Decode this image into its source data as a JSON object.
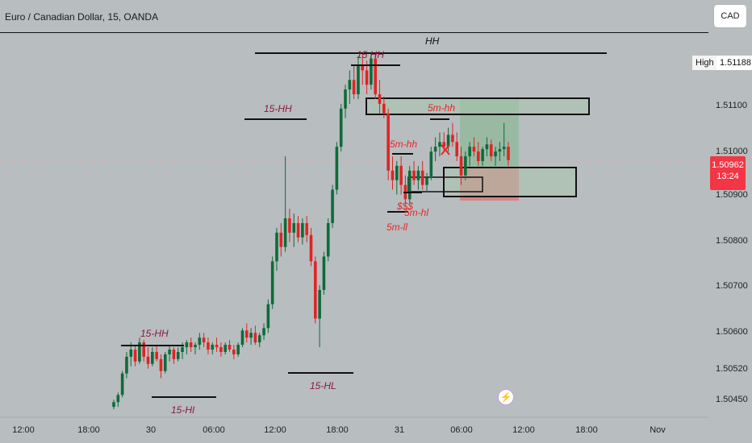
{
  "header": {
    "title": "Euro / Canadian Dollar, 15, OANDA",
    "currency_button": "CAD"
  },
  "price_scale": {
    "high_label": "High",
    "high_value": "1.51188",
    "current_price": "1.50962",
    "countdown": "13:24",
    "ticks": [
      "1.51100",
      "1.51000",
      "1.50900",
      "1.50800",
      "1.50700",
      "1.50600",
      "1.50520",
      "1.50450"
    ]
  },
  "time_axis": {
    "labels": [
      "12:00",
      "18:00",
      "30",
      "06:00",
      "12:00",
      "18:00",
      "31",
      "06:00",
      "12:00",
      "18:00",
      "Nov"
    ]
  },
  "colors": {
    "background": "#b8bdbf",
    "bull": "#0e6b3a",
    "bear": "#e02424",
    "annotation": "#8b1a3c",
    "annotation_red": "#e8262a",
    "current_price": "#f23645"
  },
  "annotations": {
    "hh": "HH",
    "hh15_top": "15 HH",
    "hh15_mid": "15-HH",
    "hh15_low": "15-HH",
    "hl15_low": "15-HI",
    "hl15_mid": "15-HL",
    "hh5_box": "5m-hh",
    "hh5_mid": "5m-hh",
    "ll5": "5m-ll",
    "hl5": "5m-hl",
    "sss": "$$$"
  },
  "chart_data": {
    "type": "candlestick",
    "title": "Euro / Canadian Dollar, 15, OANDA",
    "xlabel": "",
    "ylabel": "",
    "ylim": [
      1.5043,
      1.5123
    ],
    "x_ticks": [
      "12:00",
      "18:00",
      "30",
      "06:00",
      "12:00",
      "18:00",
      "31",
      "06:00",
      "12:00",
      "18:00",
      "Nov"
    ],
    "legend": "none",
    "grid": false,
    "high": 1.51188,
    "current_price": 1.50962,
    "candles": [
      [
        1.50445,
        1.5046,
        1.5044,
        1.50455
      ],
      [
        1.50455,
        1.50475,
        1.50445,
        1.5047
      ],
      [
        1.5047,
        1.5052,
        1.50465,
        1.50515
      ],
      [
        1.50515,
        1.5056,
        1.50505,
        1.5055
      ],
      [
        1.5055,
        1.5058,
        1.5053,
        1.50565
      ],
      [
        1.50565,
        1.50575,
        1.5053,
        1.5054
      ],
      [
        1.5054,
        1.5059,
        1.50535,
        1.5058
      ],
      [
        1.5058,
        1.50585,
        1.5054,
        1.5055
      ],
      [
        1.5055,
        1.5057,
        1.50525,
        1.50535
      ],
      [
        1.50535,
        1.5057,
        1.5053,
        1.5056
      ],
      [
        1.5056,
        1.50575,
        1.5054,
        1.50545
      ],
      [
        1.50545,
        1.50555,
        1.50505,
        1.5052
      ],
      [
        1.5052,
        1.5056,
        1.50515,
        1.50555
      ],
      [
        1.50555,
        1.50575,
        1.5054,
        1.50565
      ],
      [
        1.50565,
        1.5057,
        1.50535,
        1.50545
      ],
      [
        1.50545,
        1.5057,
        1.5054,
        1.5056
      ],
      [
        1.5056,
        1.5058,
        1.50545,
        1.5057
      ],
      [
        1.5057,
        1.50585,
        1.50555,
        1.5058
      ],
      [
        1.5058,
        1.5059,
        1.5056,
        1.5057
      ],
      [
        1.5057,
        1.5058,
        1.50555,
        1.50575
      ],
      [
        1.50575,
        1.506,
        1.50565,
        1.5059
      ],
      [
        1.5059,
        1.506,
        1.5057,
        1.5058
      ],
      [
        1.5058,
        1.5059,
        1.50555,
        1.50565
      ],
      [
        1.50565,
        1.5058,
        1.50555,
        1.50575
      ],
      [
        1.50575,
        1.5059,
        1.5056,
        1.5057
      ],
      [
        1.5057,
        1.5058,
        1.5055,
        1.5056
      ],
      [
        1.5056,
        1.5058,
        1.50555,
        1.50575
      ],
      [
        1.50575,
        1.50585,
        1.5056,
        1.50565
      ],
      [
        1.50565,
        1.50575,
        1.50545,
        1.50555
      ],
      [
        1.50555,
        1.5058,
        1.5055,
        1.50575
      ],
      [
        1.50575,
        1.5061,
        1.5057,
        1.50605
      ],
      [
        1.50605,
        1.5062,
        1.5058,
        1.5059
      ],
      [
        1.5059,
        1.5061,
        1.50575,
        1.506
      ],
      [
        1.506,
        1.50615,
        1.50575,
        1.5058
      ],
      [
        1.5058,
        1.506,
        1.5057,
        1.50595
      ],
      [
        1.50595,
        1.5062,
        1.50585,
        1.5061
      ],
      [
        1.5061,
        1.5067,
        1.506,
        1.5066
      ],
      [
        1.5066,
        1.5076,
        1.5065,
        1.5075
      ],
      [
        1.5075,
        1.5082,
        1.5073,
        1.5081
      ],
      [
        1.5081,
        1.5083,
        1.5076,
        1.5078
      ],
      [
        1.5078,
        1.5097,
        1.5077,
        1.5084
      ],
      [
        1.5084,
        1.5086,
        1.5079,
        1.5081
      ],
      [
        1.5081,
        1.5085,
        1.5078,
        1.5083
      ],
      [
        1.5083,
        1.50845,
        1.5079,
        1.508
      ],
      [
        1.508,
        1.5084,
        1.50785,
        1.5083
      ],
      [
        1.5083,
        1.50845,
        1.5079,
        1.50805
      ],
      [
        1.50805,
        1.5082,
        1.5074,
        1.5075
      ],
      [
        1.5075,
        1.5076,
        1.5062,
        1.5063
      ],
      [
        1.5063,
        1.507,
        1.5057,
        1.5069
      ],
      [
        1.5069,
        1.5077,
        1.5068,
        1.5076
      ],
      [
        1.5076,
        1.5084,
        1.5075,
        1.5083
      ],
      [
        1.5083,
        1.5091,
        1.5082,
        1.509
      ],
      [
        1.509,
        1.51,
        1.5089,
        1.5099
      ],
      [
        1.5099,
        1.5108,
        1.5098,
        1.5107
      ],
      [
        1.5107,
        1.5112,
        1.5105,
        1.5111
      ],
      [
        1.5111,
        1.5115,
        1.5108,
        1.5113
      ],
      [
        1.5113,
        1.5116,
        1.5109,
        1.511
      ],
      [
        1.511,
        1.5118,
        1.5109,
        1.5116
      ],
      [
        1.5116,
        1.51188,
        1.5112,
        1.5115
      ],
      [
        1.5115,
        1.5117,
        1.511,
        1.5112
      ],
      [
        1.5112,
        1.51188,
        1.5111,
        1.51175
      ],
      [
        1.51175,
        1.51185,
        1.5109,
        1.511
      ],
      [
        1.511,
        1.5113,
        1.5106,
        1.5108
      ],
      [
        1.5108,
        1.51095,
        1.5105,
        1.5106
      ],
      [
        1.5106,
        1.5107,
        1.5092,
        1.5094
      ],
      [
        1.5094,
        1.5097,
        1.509,
        1.5092
      ],
      [
        1.5092,
        1.5096,
        1.5089,
        1.5095
      ],
      [
        1.5095,
        1.5097,
        1.5089,
        1.5091
      ],
      [
        1.5091,
        1.5093,
        1.5087,
        1.5088
      ],
      [
        1.5088,
        1.5095,
        1.5087,
        1.5094
      ],
      [
        1.5094,
        1.5096,
        1.5091,
        1.5092
      ],
      [
        1.5092,
        1.5095,
        1.509,
        1.5094
      ],
      [
        1.5094,
        1.5096,
        1.509,
        1.5091
      ],
      [
        1.5091,
        1.50935,
        1.50895,
        1.50925
      ],
      [
        1.50925,
        1.5099,
        1.5092,
        1.5098
      ],
      [
        1.5098,
        1.5101,
        1.5096,
        1.5099
      ],
      [
        1.5099,
        1.5102,
        1.5097,
        1.51
      ],
      [
        1.51,
        1.5102,
        1.5098,
        1.5099
      ],
      [
        1.5099,
        1.5103,
        1.5098,
        1.51015
      ],
      [
        1.51015,
        1.5104,
        1.5099,
        1.51
      ],
      [
        1.51,
        1.5102,
        1.5096,
        1.5097
      ],
      [
        1.5097,
        1.5099,
        1.5091,
        1.5093
      ],
      [
        1.5093,
        1.5098,
        1.5092,
        1.5097
      ],
      [
        1.5097,
        1.51,
        1.5095,
        1.5099
      ],
      [
        1.5099,
        1.5101,
        1.5097,
        1.5098
      ],
      [
        1.5098,
        1.51,
        1.5095,
        1.5096
      ],
      [
        1.5096,
        1.5099,
        1.5095,
        1.50985
      ],
      [
        1.50985,
        1.5101,
        1.5097,
        1.50995
      ],
      [
        1.50995,
        1.51005,
        1.5096,
        1.5097
      ],
      [
        1.5097,
        1.5099,
        1.5095,
        1.5098
      ],
      [
        1.5098,
        1.51,
        1.5096,
        1.50985
      ],
      [
        1.50985,
        1.5104,
        1.5097,
        1.5099
      ],
      [
        1.5099,
        1.51,
        1.5095,
        1.50962
      ]
    ],
    "levels": [
      {
        "label": "HH",
        "price": 1.512
      },
      {
        "label": "15 HH",
        "price": 1.51175
      },
      {
        "label": "15-HH",
        "price": 1.5107
      },
      {
        "label": "15-HH",
        "price": 1.5062
      },
      {
        "label": "15-HL",
        "price": 1.5052
      },
      {
        "label": "15-HI",
        "price": 1.5048
      }
    ]
  }
}
